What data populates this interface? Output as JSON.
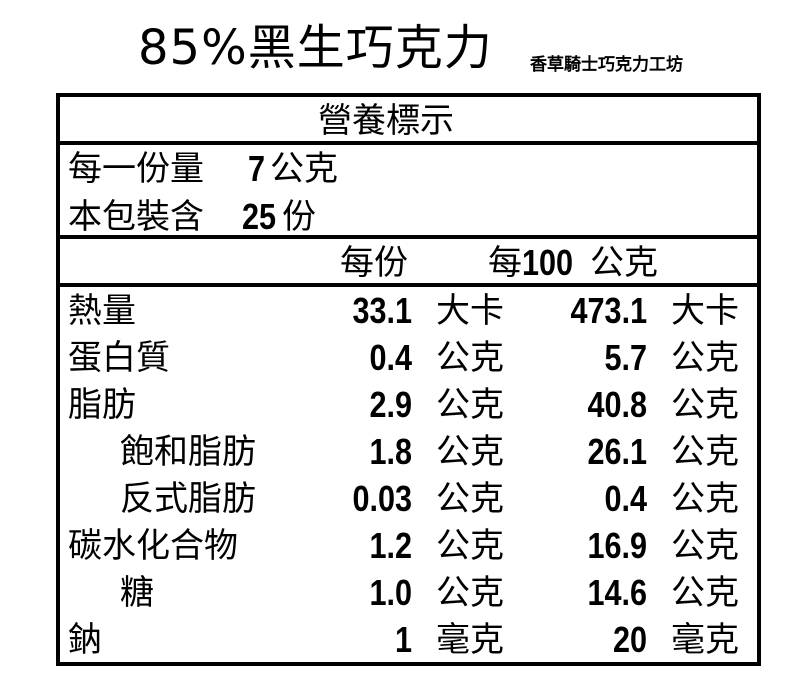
{
  "product_title": "85%黑生巧克力",
  "brand": "香草騎士巧克力工坊",
  "label": {
    "heading": "營養標示",
    "serving_size_label": "每一份量",
    "serving_size_value": "7",
    "serving_size_unit": "公克",
    "servings_label": "本包裝含",
    "servings_value": "25",
    "servings_unit": "份",
    "col_per_serving": "每份",
    "col_per_100_prefix": "每",
    "col_per_100_num": "100",
    "col_per_100_unit": "公克",
    "rows": [
      {
        "name": "熱量",
        "v1": "33.1",
        "u1": "大卡",
        "v2": "473.1",
        "u2": "大卡",
        "indent": false
      },
      {
        "name": "蛋白質",
        "v1": "0.4",
        "u1": "公克",
        "v2": "5.7",
        "u2": "公克",
        "indent": false
      },
      {
        "name": "脂肪",
        "v1": "2.9",
        "u1": "公克",
        "v2": "40.8",
        "u2": "公克",
        "indent": false
      },
      {
        "name": "飽和脂肪",
        "v1": "1.8",
        "u1": "公克",
        "v2": "26.1",
        "u2": "公克",
        "indent": true
      },
      {
        "name": "反式脂肪",
        "v1": "0.03",
        "u1": "公克",
        "v2": "0.4",
        "u2": "公克",
        "indent": true
      },
      {
        "name": "碳水化合物",
        "v1": "1.2",
        "u1": "公克",
        "v2": "16.9",
        "u2": "公克",
        "indent": false
      },
      {
        "name": "糖",
        "v1": "1.0",
        "u1": "公克",
        "v2": "14.6",
        "u2": "公克",
        "indent": true
      },
      {
        "name": "鈉",
        "v1": "1",
        "u1": "毫克",
        "v2": "20",
        "u2": "毫克",
        "indent": false
      }
    ]
  }
}
